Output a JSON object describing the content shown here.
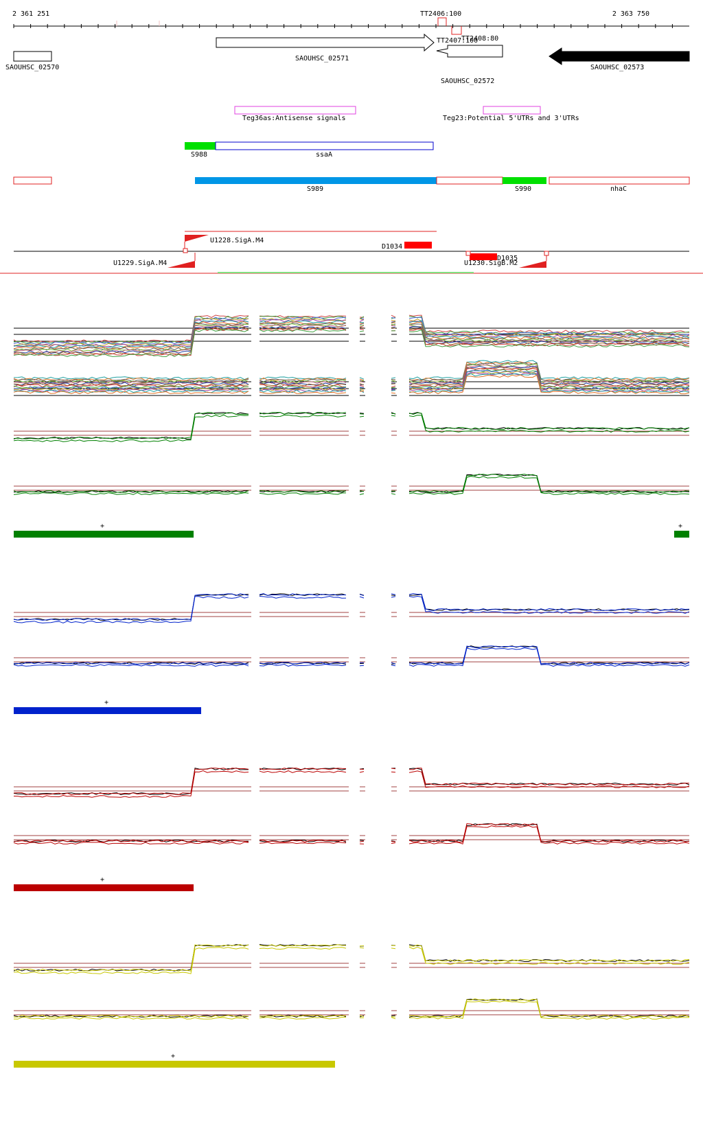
{
  "genome": {
    "coord_start": "2 361 251",
    "coord_end": "2 363 750",
    "range": [
      2361251,
      2363750
    ]
  },
  "terminators": [
    {
      "label": "TT2406:100"
    },
    {
      "label": "TT2407:100"
    },
    {
      "label": "TT2408:80"
    }
  ],
  "genes": [
    {
      "label": "SAOUHSC_02570",
      "strand": "+",
      "filled": false
    },
    {
      "label": "SAOUHSC_02571",
      "strand": "+",
      "filled": false
    },
    {
      "label": "SAOUHSC_02572",
      "strand": "-",
      "filled": false
    },
    {
      "label": "SAOUHSC_02573",
      "strand": "-",
      "filled": true
    }
  ],
  "literature": [
    {
      "label": "Teg36as:Antisense signals"
    },
    {
      "label": "Teg23:Potential 5'UTRs and 3'UTRs"
    }
  ],
  "segments_row1": [
    {
      "label": "S988",
      "color": "#00e000"
    },
    {
      "label": "ssaA",
      "color": "#0000cc"
    }
  ],
  "segments_row2": [
    {
      "label": "",
      "color": "#e02020"
    },
    {
      "label": "S989",
      "color": "#0096e6"
    },
    {
      "label": "",
      "color": "#e02020"
    },
    {
      "label": "S990",
      "color": "#00e000"
    },
    {
      "label": "nhaC",
      "color": "#e02020"
    }
  ],
  "promoters": [
    {
      "label": "U1228.SigA.M4"
    },
    {
      "label": "U1229.SigA.M4"
    },
    {
      "label": "U1230.SigB.M2"
    }
  ],
  "downshifts": [
    {
      "label": "D1034"
    },
    {
      "label": "D1035"
    }
  ],
  "condition_groups": [
    {
      "color": "#008000",
      "bar_marks": [
        "+",
        "+"
      ]
    },
    {
      "color": "#0022cc",
      "bar_marks": [
        "+"
      ]
    },
    {
      "color": "#bb0000",
      "bar_marks": [
        "+"
      ]
    },
    {
      "color": "#c8c800",
      "bar_marks": [
        "+"
      ]
    }
  ]
}
